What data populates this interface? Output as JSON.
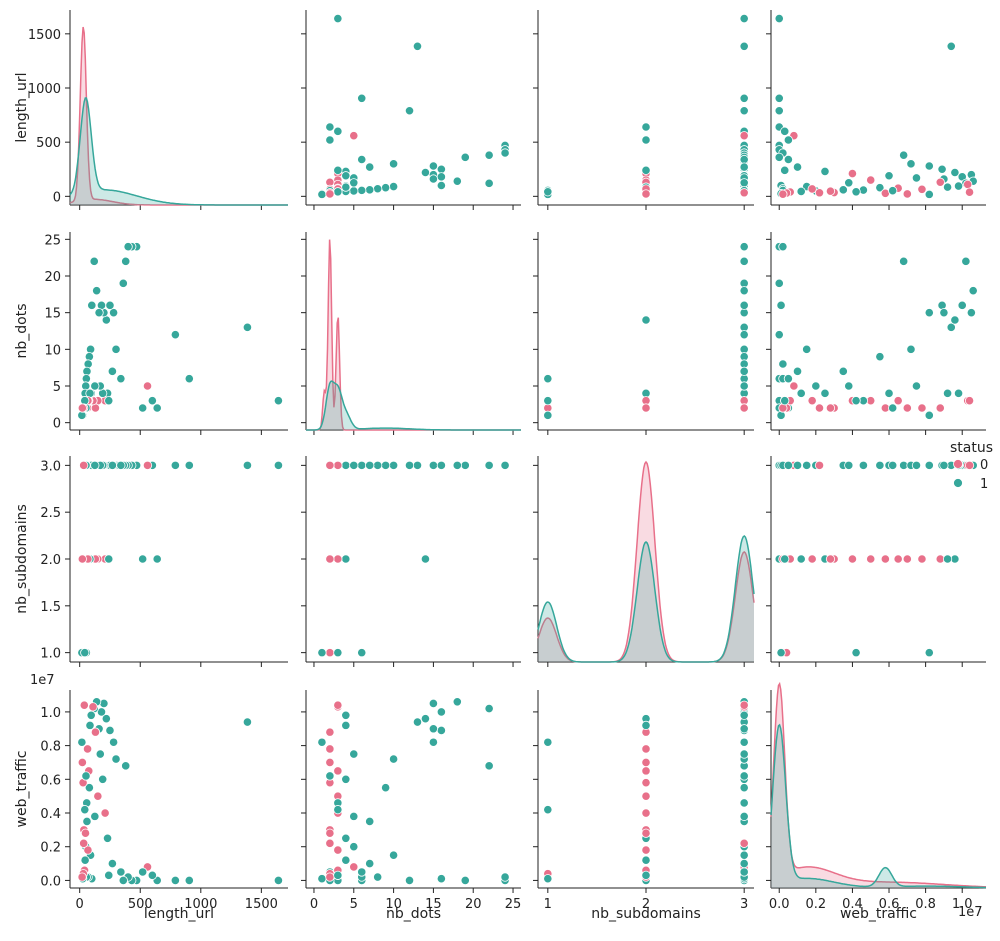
{
  "colors": {
    "status_0": "#e8708a",
    "status_1": "#36a79b"
  },
  "legend": {
    "title": "status",
    "labels": [
      "0",
      "1"
    ]
  },
  "variables": [
    "length_url",
    "nb_dots",
    "nb_subdomains",
    "web_traffic"
  ],
  "offset_label": "1e7",
  "chart_data": {
    "type": "scatter",
    "kind": "pairplot",
    "hue": "status",
    "axes": {
      "length_url": {
        "lim": [
          -80,
          1720
        ],
        "ticks": [
          0,
          500,
          1000,
          1500
        ],
        "tick_labels": [
          "0",
          "500",
          "1000",
          "1500"
        ]
      },
      "nb_dots": {
        "lim": [
          -1,
          26
        ],
        "ticks": [
          0,
          5,
          10,
          15,
          20,
          25
        ],
        "tick_labels": [
          "0",
          "5",
          "10",
          "15",
          "20",
          "25"
        ]
      },
      "nb_subdomains": {
        "lim": [
          0.9,
          3.1
        ],
        "y_ticks": [
          1.0,
          1.5,
          2.0,
          2.5,
          3.0
        ],
        "y_tick_labels": [
          "1.0",
          "1.5",
          "2.0",
          "2.5",
          "3.0"
        ],
        "x_ticks": [
          1,
          2,
          3
        ],
        "x_tick_labels": [
          "1",
          "2",
          "3"
        ]
      },
      "web_traffic": {
        "lim": [
          -0.45,
          11.3
        ],
        "ticks": [
          0,
          2,
          4,
          6,
          8,
          10
        ],
        "tick_labels": [
          "0.0",
          "0.2",
          "0.4",
          "0.6",
          "0.8",
          "1.0"
        ],
        "unit": 1000000
      }
    },
    "samples": [
      {
        "length_url": 1641,
        "nb_dots": 3,
        "nb_subdomains": 3,
        "web_traffic": 0,
        "status": 1
      },
      {
        "length_url": 1385,
        "nb_dots": 13,
        "nb_subdomains": 3,
        "web_traffic": 9.4,
        "status": 1
      },
      {
        "length_url": 905,
        "nb_dots": 6,
        "nb_subdomains": 3,
        "web_traffic": 0,
        "status": 1
      },
      {
        "length_url": 790,
        "nb_dots": 12,
        "nb_subdomains": 3,
        "web_traffic": 0,
        "status": 1
      },
      {
        "length_url": 640,
        "nb_dots": 2,
        "nb_subdomains": 2,
        "web_traffic": 0,
        "status": 1
      },
      {
        "length_url": 600,
        "nb_dots": 3,
        "nb_subdomains": 3,
        "web_traffic": 0.3,
        "status": 1
      },
      {
        "length_url": 560,
        "nb_dots": 5,
        "nb_subdomains": 3,
        "web_traffic": 0.8,
        "status": 0
      },
      {
        "length_url": 520,
        "nb_dots": 2,
        "nb_subdomains": 2,
        "web_traffic": 0.5,
        "status": 1
      },
      {
        "length_url": 470,
        "nb_dots": 24,
        "nb_subdomains": 3,
        "web_traffic": 0,
        "status": 1
      },
      {
        "length_url": 430,
        "nb_dots": 24,
        "nb_subdomains": 3,
        "web_traffic": 0,
        "status": 1
      },
      {
        "length_url": 400,
        "nb_dots": 24,
        "nb_subdomains": 3,
        "web_traffic": 0.2,
        "status": 1
      },
      {
        "length_url": 380,
        "nb_dots": 22,
        "nb_subdomains": 3,
        "web_traffic": 6.8,
        "status": 1
      },
      {
        "length_url": 360,
        "nb_dots": 19,
        "nb_subdomains": 3,
        "web_traffic": 0,
        "status": 1
      },
      {
        "length_url": 300,
        "nb_dots": 10,
        "nb_subdomains": 3,
        "web_traffic": 7.2,
        "status": 1
      },
      {
        "length_url": 280,
        "nb_dots": 15,
        "nb_subdomains": 3,
        "web_traffic": 8.2,
        "status": 1
      },
      {
        "length_url": 250,
        "nb_dots": 16,
        "nb_subdomains": 3,
        "web_traffic": 8.9,
        "status": 1
      },
      {
        "length_url": 220,
        "nb_dots": 14,
        "nb_subdomains": 2,
        "web_traffic": 9.6,
        "status": 1
      },
      {
        "length_url": 200,
        "nb_dots": 15,
        "nb_subdomains": 3,
        "web_traffic": 10.5,
        "status": 1
      },
      {
        "length_url": 180,
        "nb_dots": 16,
        "nb_subdomains": 3,
        "web_traffic": 10.0,
        "status": 1
      },
      {
        "length_url": 160,
        "nb_dots": 15,
        "nb_subdomains": 3,
        "web_traffic": 9.0,
        "status": 1
      },
      {
        "length_url": 140,
        "nb_dots": 18,
        "nb_subdomains": 3,
        "web_traffic": 10.6,
        "status": 1
      },
      {
        "length_url": 120,
        "nb_dots": 22,
        "nb_subdomains": 3,
        "web_traffic": 10.2,
        "status": 1
      },
      {
        "length_url": 100,
        "nb_dots": 16,
        "nb_subdomains": 3,
        "web_traffic": 0.1,
        "status": 1
      },
      {
        "length_url": 90,
        "nb_dots": 10,
        "nb_subdomains": 3,
        "web_traffic": 1.5,
        "status": 1
      },
      {
        "length_url": 80,
        "nb_dots": 9,
        "nb_subdomains": 3,
        "web_traffic": 5.5,
        "status": 1
      },
      {
        "length_url": 70,
        "nb_dots": 8,
        "nb_subdomains": 3,
        "web_traffic": 0.2,
        "status": 1
      },
      {
        "length_url": 60,
        "nb_dots": 7,
        "nb_subdomains": 3,
        "web_traffic": 3.5,
        "status": 1
      },
      {
        "length_url": 55,
        "nb_dots": 6,
        "nb_subdomains": 1,
        "web_traffic": 0.2,
        "status": 1
      },
      {
        "length_url": 50,
        "nb_dots": 5,
        "nb_subdomains": 3,
        "web_traffic": 2.0,
        "status": 1
      },
      {
        "length_url": 45,
        "nb_dots": 4,
        "nb_subdomains": 2,
        "web_traffic": 1.2,
        "status": 1
      },
      {
        "length_url": 40,
        "nb_dots": 3,
        "nb_subdomains": 2,
        "web_traffic": 0.6,
        "status": 0
      },
      {
        "length_url": 35,
        "nb_dots": 2,
        "nb_subdomains": 2,
        "web_traffic": 3.0,
        "status": 0
      },
      {
        "length_url": 30,
        "nb_dots": 2,
        "nb_subdomains": 1,
        "web_traffic": 0.4,
        "status": 0
      },
      {
        "length_url": 25,
        "nb_dots": 1,
        "nb_subdomains": 1,
        "web_traffic": 0.1,
        "status": 1
      },
      {
        "length_url": 20,
        "nb_dots": 2,
        "nb_subdomains": 2,
        "web_traffic": 0.2,
        "status": 0
      },
      {
        "length_url": 230,
        "nb_dots": 4,
        "nb_subdomains": 2,
        "web_traffic": 2.5,
        "status": 1
      },
      {
        "length_url": 210,
        "nb_dots": 3,
        "nb_subdomains": 2,
        "web_traffic": 4.0,
        "status": 0
      },
      {
        "length_url": 190,
        "nb_dots": 4,
        "nb_subdomains": 3,
        "web_traffic": 6.0,
        "status": 1
      },
      {
        "length_url": 170,
        "nb_dots": 5,
        "nb_subdomains": 3,
        "web_traffic": 7.5,
        "status": 1
      },
      {
        "length_url": 150,
        "nb_dots": 3,
        "nb_subdomains": 2,
        "web_traffic": 5.0,
        "status": 0
      },
      {
        "length_url": 130,
        "nb_dots": 2,
        "nb_subdomains": 2,
        "web_traffic": 8.8,
        "status": 0
      },
      {
        "length_url": 110,
        "nb_dots": 3,
        "nb_subdomains": 3,
        "web_traffic": 10.3,
        "status": 0
      },
      {
        "length_url": 95,
        "nb_dots": 4,
        "nb_subdomains": 3,
        "web_traffic": 9.8,
        "status": 1
      },
      {
        "length_url": 75,
        "nb_dots": 3,
        "nb_subdomains": 2,
        "web_traffic": 6.5,
        "status": 0
      },
      {
        "length_url": 65,
        "nb_dots": 2,
        "nb_subdomains": 2,
        "web_traffic": 7.8,
        "status": 0
      },
      {
        "length_url": 58,
        "nb_dots": 3,
        "nb_subdomains": 3,
        "web_traffic": 4.6,
        "status": 1
      },
      {
        "length_url": 48,
        "nb_dots": 2,
        "nb_subdomains": 2,
        "web_traffic": 2.8,
        "status": 0
      },
      {
        "length_url": 38,
        "nb_dots": 3,
        "nb_subdomains": 3,
        "web_traffic": 10.4,
        "status": 0
      },
      {
        "length_url": 28,
        "nb_dots": 2,
        "nb_subdomains": 2,
        "web_traffic": 5.8,
        "status": 0
      },
      {
        "length_url": 18,
        "nb_dots": 1,
        "nb_subdomains": 1,
        "web_traffic": 8.2,
        "status": 1
      },
      {
        "length_url": 340,
        "nb_dots": 6,
        "nb_subdomains": 3,
        "web_traffic": 0.5,
        "status": 1
      },
      {
        "length_url": 270,
        "nb_dots": 7,
        "nb_subdomains": 3,
        "web_traffic": 1.0,
        "status": 1
      },
      {
        "length_url": 240,
        "nb_dots": 3,
        "nb_subdomains": 2,
        "web_traffic": 0.3,
        "status": 1
      },
      {
        "length_url": 125,
        "nb_dots": 5,
        "nb_subdomains": 3,
        "web_traffic": 3.8,
        "status": 1
      },
      {
        "length_url": 85,
        "nb_dots": 4,
        "nb_subdomains": 2,
        "web_traffic": 9.2,
        "status": 1
      },
      {
        "length_url": 68,
        "nb_dots": 3,
        "nb_subdomains": 2,
        "web_traffic": 1.8,
        "status": 0
      },
      {
        "length_url": 52,
        "nb_dots": 2,
        "nb_subdomains": 3,
        "web_traffic": 6.2,
        "status": 1
      },
      {
        "length_url": 42,
        "nb_dots": 3,
        "nb_subdomains": 1,
        "web_traffic": 4.2,
        "status": 1
      },
      {
        "length_url": 33,
        "nb_dots": 2,
        "nb_subdomains": 3,
        "web_traffic": 2.2,
        "status": 0
      },
      {
        "length_url": 22,
        "nb_dots": 2,
        "nb_subdomains": 2,
        "web_traffic": 7.0,
        "status": 0
      }
    ],
    "kde": {
      "length_url": {
        "series": [
          {
            "status": 0,
            "mode": 30,
            "width": 25,
            "peak": 0.92,
            "tail": 0.03
          },
          {
            "status": 1,
            "mode": 50,
            "width": 45,
            "peak": 0.5,
            "tail": 0.08
          }
        ]
      },
      "nb_dots": {
        "series": [
          {
            "status": 0,
            "bumps": [
              [
                2,
                0.22,
                1.0
              ],
              [
                3,
                0.22,
                0.6
              ],
              [
                1.3,
                0.2,
                0.2
              ]
            ]
          },
          {
            "status": 1,
            "bumps": [
              [
                2,
                0.5,
                0.22
              ],
              [
                3,
                0.5,
                0.18
              ],
              [
                4,
                0.6,
                0.08
              ],
              [
                9,
                3,
                0.01
              ]
            ]
          }
        ]
      },
      "nb_subdomains": {
        "series": [
          {
            "status": 0,
            "bumps": [
              [
                1,
                0.09,
                0.22
              ],
              [
                2,
                0.09,
                1.0
              ],
              [
                3,
                0.09,
                0.55
              ]
            ]
          },
          {
            "status": 1,
            "bumps": [
              [
                1,
                0.09,
                0.3
              ],
              [
                2,
                0.09,
                0.6
              ],
              [
                3,
                0.09,
                0.63
              ]
            ]
          }
        ]
      },
      "web_traffic": {
        "series": [
          {
            "status": 0,
            "bumps": [
              [
                0.0,
                0.3,
                1.0
              ],
              [
                1.5,
                1.5,
                0.1
              ],
              [
                6,
                3,
                0.03
              ]
            ]
          },
          {
            "status": 1,
            "bumps": [
              [
                0.0,
                0.35,
                0.82
              ],
              [
                1.5,
                1.5,
                0.05
              ],
              [
                5.8,
                0.35,
                0.1
              ],
              [
                8,
                2,
                0.01
              ]
            ]
          }
        ]
      }
    }
  }
}
